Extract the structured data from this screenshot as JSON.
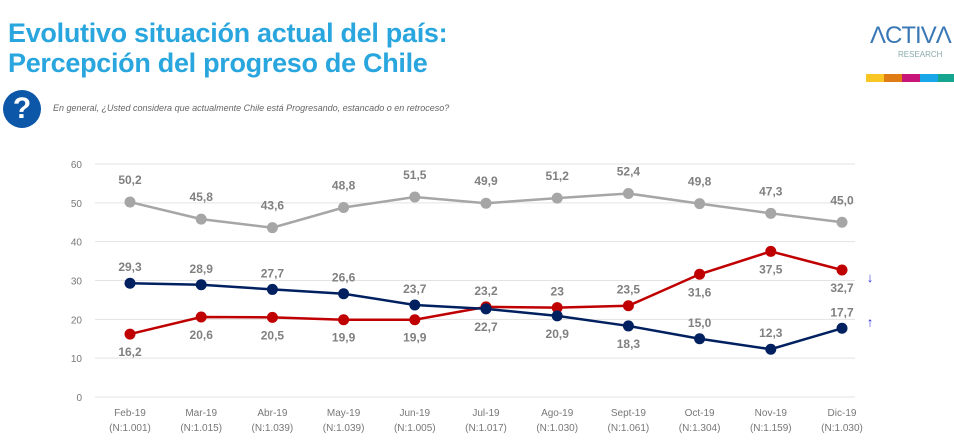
{
  "header": {
    "title_line1": "Evolutivo situación actual del país:",
    "title_line2": "Percepción del progreso de Chile",
    "question": "En general, ¿Usted considera que actualmente Chile está Progresando, estancado o en retroceso?",
    "question_icon": "question-mark-icon"
  },
  "logo": {
    "name": "ACTIVA",
    "sub": "RESEARCH",
    "stripe_colors": [
      "#f9c623",
      "#e07c14",
      "#c8157a",
      "#1aa7e8",
      "#16a58f"
    ]
  },
  "chart_data": {
    "type": "line",
    "ylim": [
      0,
      60
    ],
    "yticks": [
      0,
      10,
      20,
      30,
      40,
      50,
      60
    ],
    "grid": true,
    "categories": [
      "Feb-19",
      "Mar-19",
      "Abr-19",
      "May-19",
      "Jun-19",
      "Jul-19",
      "Ago-19",
      "Sept-19",
      "Oct-19",
      "Nov-19",
      "Dic-19"
    ],
    "sample_sizes": [
      "(N:1.001)",
      "(N:1.015)",
      "(N:1.039)",
      "(N:1.039)",
      "(N:1.005)",
      "(N:1.017)",
      "(N:1.030)",
      "(N:1.061)",
      "(N:1.304)",
      "(N:1.159)",
      "(N:1.030)"
    ],
    "series": [
      {
        "color": "#a6a6a6",
        "values": [
          50.2,
          45.8,
          43.6,
          48.8,
          51.5,
          49.9,
          51.2,
          52.4,
          49.8,
          47.3,
          45.0
        ],
        "labels": [
          "50,2",
          "45,8",
          "43,6",
          "48,8",
          "51,5",
          "49,9",
          "51,2",
          "52,4",
          "49,8",
          "47,3",
          "45,0"
        ]
      },
      {
        "color": "#c00000",
        "values": [
          16.2,
          20.6,
          20.5,
          19.9,
          19.9,
          23.2,
          23,
          23.5,
          31.6,
          37.5,
          32.7
        ],
        "labels": [
          "16,2",
          "20,6",
          "20,5",
          "19,9",
          "19,9",
          "23,2",
          "23",
          "23,5",
          "31,6",
          "37,5",
          "32,7"
        ],
        "trend": "down-arrow-icon"
      },
      {
        "color": "#002060",
        "values": [
          29.3,
          28.9,
          27.7,
          26.6,
          23.7,
          22.7,
          20.9,
          18.3,
          15.0,
          12.3,
          17.7
        ],
        "labels": [
          "29,3",
          "28,9",
          "27,7",
          "26,6",
          "23,7",
          "22,7",
          "20,9",
          "18,3",
          "15,0",
          "12,3",
          "17,7"
        ],
        "trend": "up-arrow-icon"
      }
    ]
  }
}
